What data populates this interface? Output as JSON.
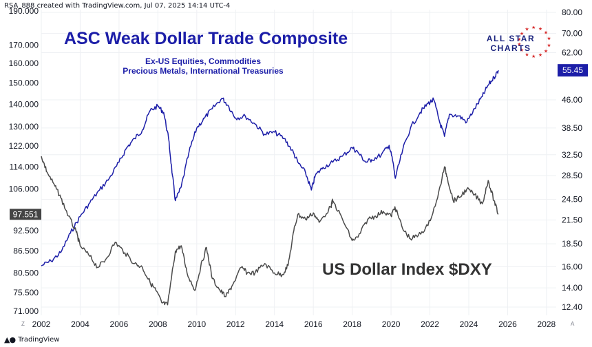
{
  "header": {
    "watermark": "RSA_888 created with TradingView.com, Jul 07, 2025 14:14 UTC-4"
  },
  "footer": {
    "brand": "TradingView",
    "logo_icon": "tradingview-logo-icon"
  },
  "logo": {
    "line1": "ALL STAR",
    "line2": "CHARTS",
    "icon": "star-ring-icon",
    "star_color": "#d62b2b",
    "text_color": "#1a237e"
  },
  "chart_data": {
    "type": "line",
    "title": "ASC Weak Dollar Trade Composite",
    "subtitle": [
      "Ex-US Equities, Commodities",
      "Precious Metals, International Treasuries"
    ],
    "annotation": "US Dollar Index $DXY",
    "x_axis": {
      "ticks": [
        "2002",
        "2004",
        "2006",
        "2008",
        "2010",
        "2012",
        "2014",
        "2016",
        "2018",
        "2020",
        "2022",
        "2024",
        "2026",
        "2028"
      ]
    },
    "left_axis": {
      "scale": "log",
      "ticks": [
        "190.000",
        "170.000",
        "160.000",
        "150.000",
        "140.000",
        "130.000",
        "122.000",
        "114.000",
        "106.000",
        "92.500",
        "86.500",
        "80.500",
        "75.500",
        "71.000"
      ],
      "corner_marker": "Z"
    },
    "right_axis": {
      "scale": "log",
      "ticks": [
        "80.00",
        "70.00",
        "62.00",
        "46.00",
        "38.50",
        "32.50",
        "28.50",
        "24.50",
        "21.50",
        "18.50",
        "16.00",
        "14.00",
        "12.40"
      ],
      "corner_marker": "A"
    },
    "last_value_left": "97.551",
    "last_value_right": "55.45",
    "colors": {
      "composite": "#1c1ea8",
      "dxy": "#4a4a4a",
      "title": "#1c1ea8",
      "grid": "#eef0f3"
    },
    "series": [
      {
        "name": "ASC Weak Dollar Trade Composite",
        "axis": "right",
        "x": [
          2002.0,
          2002.5,
          2003.0,
          2003.5,
          2004.0,
          2004.5,
          2005.0,
          2005.5,
          2006.0,
          2006.4,
          2006.8,
          2007.2,
          2007.6,
          2008.0,
          2008.3,
          2008.55,
          2008.75,
          2008.9,
          2009.2,
          2009.6,
          2010.0,
          2010.4,
          2010.8,
          2011.3,
          2011.6,
          2012.0,
          2012.5,
          2013.0,
          2013.5,
          2014.0,
          2014.5,
          2014.9,
          2015.2,
          2015.6,
          2015.9,
          2016.1,
          2016.5,
          2017.0,
          2017.5,
          2018.0,
          2018.3,
          2018.7,
          2019.0,
          2019.5,
          2019.9,
          2020.1,
          2020.22,
          2020.6,
          2021.0,
          2021.5,
          2021.9,
          2022.2,
          2022.5,
          2022.75,
          2023.0,
          2023.5,
          2023.9,
          2024.3,
          2024.7,
          2025.0,
          2025.3,
          2025.52
        ],
        "values": [
          16.1,
          16.6,
          17.5,
          19.8,
          22.0,
          24.0,
          26.0,
          28.0,
          31.0,
          34.0,
          36.0,
          38.0,
          43.0,
          44.2,
          42.5,
          36.0,
          28.5,
          24.3,
          26.5,
          33.0,
          38.5,
          41.0,
          43.5,
          46.5,
          44.5,
          41.0,
          41.5,
          39.5,
          37.0,
          37.5,
          36.0,
          33.5,
          31.0,
          29.0,
          26.0,
          28.5,
          30.0,
          31.0,
          32.2,
          34.0,
          33.0,
          31.0,
          31.5,
          32.5,
          34.5,
          31.0,
          28.0,
          33.5,
          38.5,
          42.5,
          45.0,
          46.0,
          40.0,
          36.5,
          42.0,
          41.5,
          40.0,
          43.5,
          47.0,
          50.5,
          53.0,
          55.45
        ]
      },
      {
        "name": "US Dollar Index $DXY",
        "axis": "left",
        "x": [
          2002.0,
          2002.3,
          2002.7,
          2003.0,
          2003.4,
          2003.8,
          2004.0,
          2004.5,
          2004.9,
          2005.3,
          2005.8,
          2006.3,
          2006.8,
          2007.2,
          2007.6,
          2007.9,
          2008.2,
          2008.5,
          2008.9,
          2009.2,
          2009.5,
          2009.9,
          2010.2,
          2010.5,
          2010.8,
          2011.2,
          2011.5,
          2011.8,
          2012.3,
          2012.6,
          2013.0,
          2013.5,
          2014.0,
          2014.4,
          2014.7,
          2015.0,
          2015.2,
          2015.6,
          2016.0,
          2016.3,
          2016.9,
          2017.0,
          2017.5,
          2018.0,
          2018.3,
          2018.8,
          2019.2,
          2019.6,
          2020.0,
          2020.2,
          2020.6,
          2021.0,
          2021.4,
          2021.9,
          2022.4,
          2022.75,
          2022.9,
          2023.2,
          2023.5,
          2023.9,
          2024.3,
          2024.7,
          2025.0,
          2025.3,
          2025.52
        ],
        "values": [
          118.0,
          112.0,
          107.0,
          103.0,
          97.0,
          92.0,
          88.0,
          85.0,
          82.0,
          84.0,
          89.0,
          86.0,
          83.0,
          82.0,
          78.0,
          76.0,
          73.0,
          72.5,
          86.5,
          88.0,
          80.5,
          76.0,
          82.0,
          87.5,
          79.0,
          76.0,
          74.5,
          77.0,
          82.0,
          80.5,
          80.5,
          83.0,
          80.5,
          80.0,
          82.5,
          92.5,
          97.5,
          96.0,
          98.0,
          95.0,
          100.0,
          102.0,
          96.0,
          89.5,
          90.5,
          96.0,
          97.0,
          98.5,
          97.0,
          100.0,
          93.0,
          90.0,
          91.0,
          94.0,
          103.0,
          114.0,
          110.0,
          102.0,
          103.0,
          106.0,
          104.0,
          101.0,
          109.0,
          102.0,
          97.551
        ]
      }
    ]
  }
}
